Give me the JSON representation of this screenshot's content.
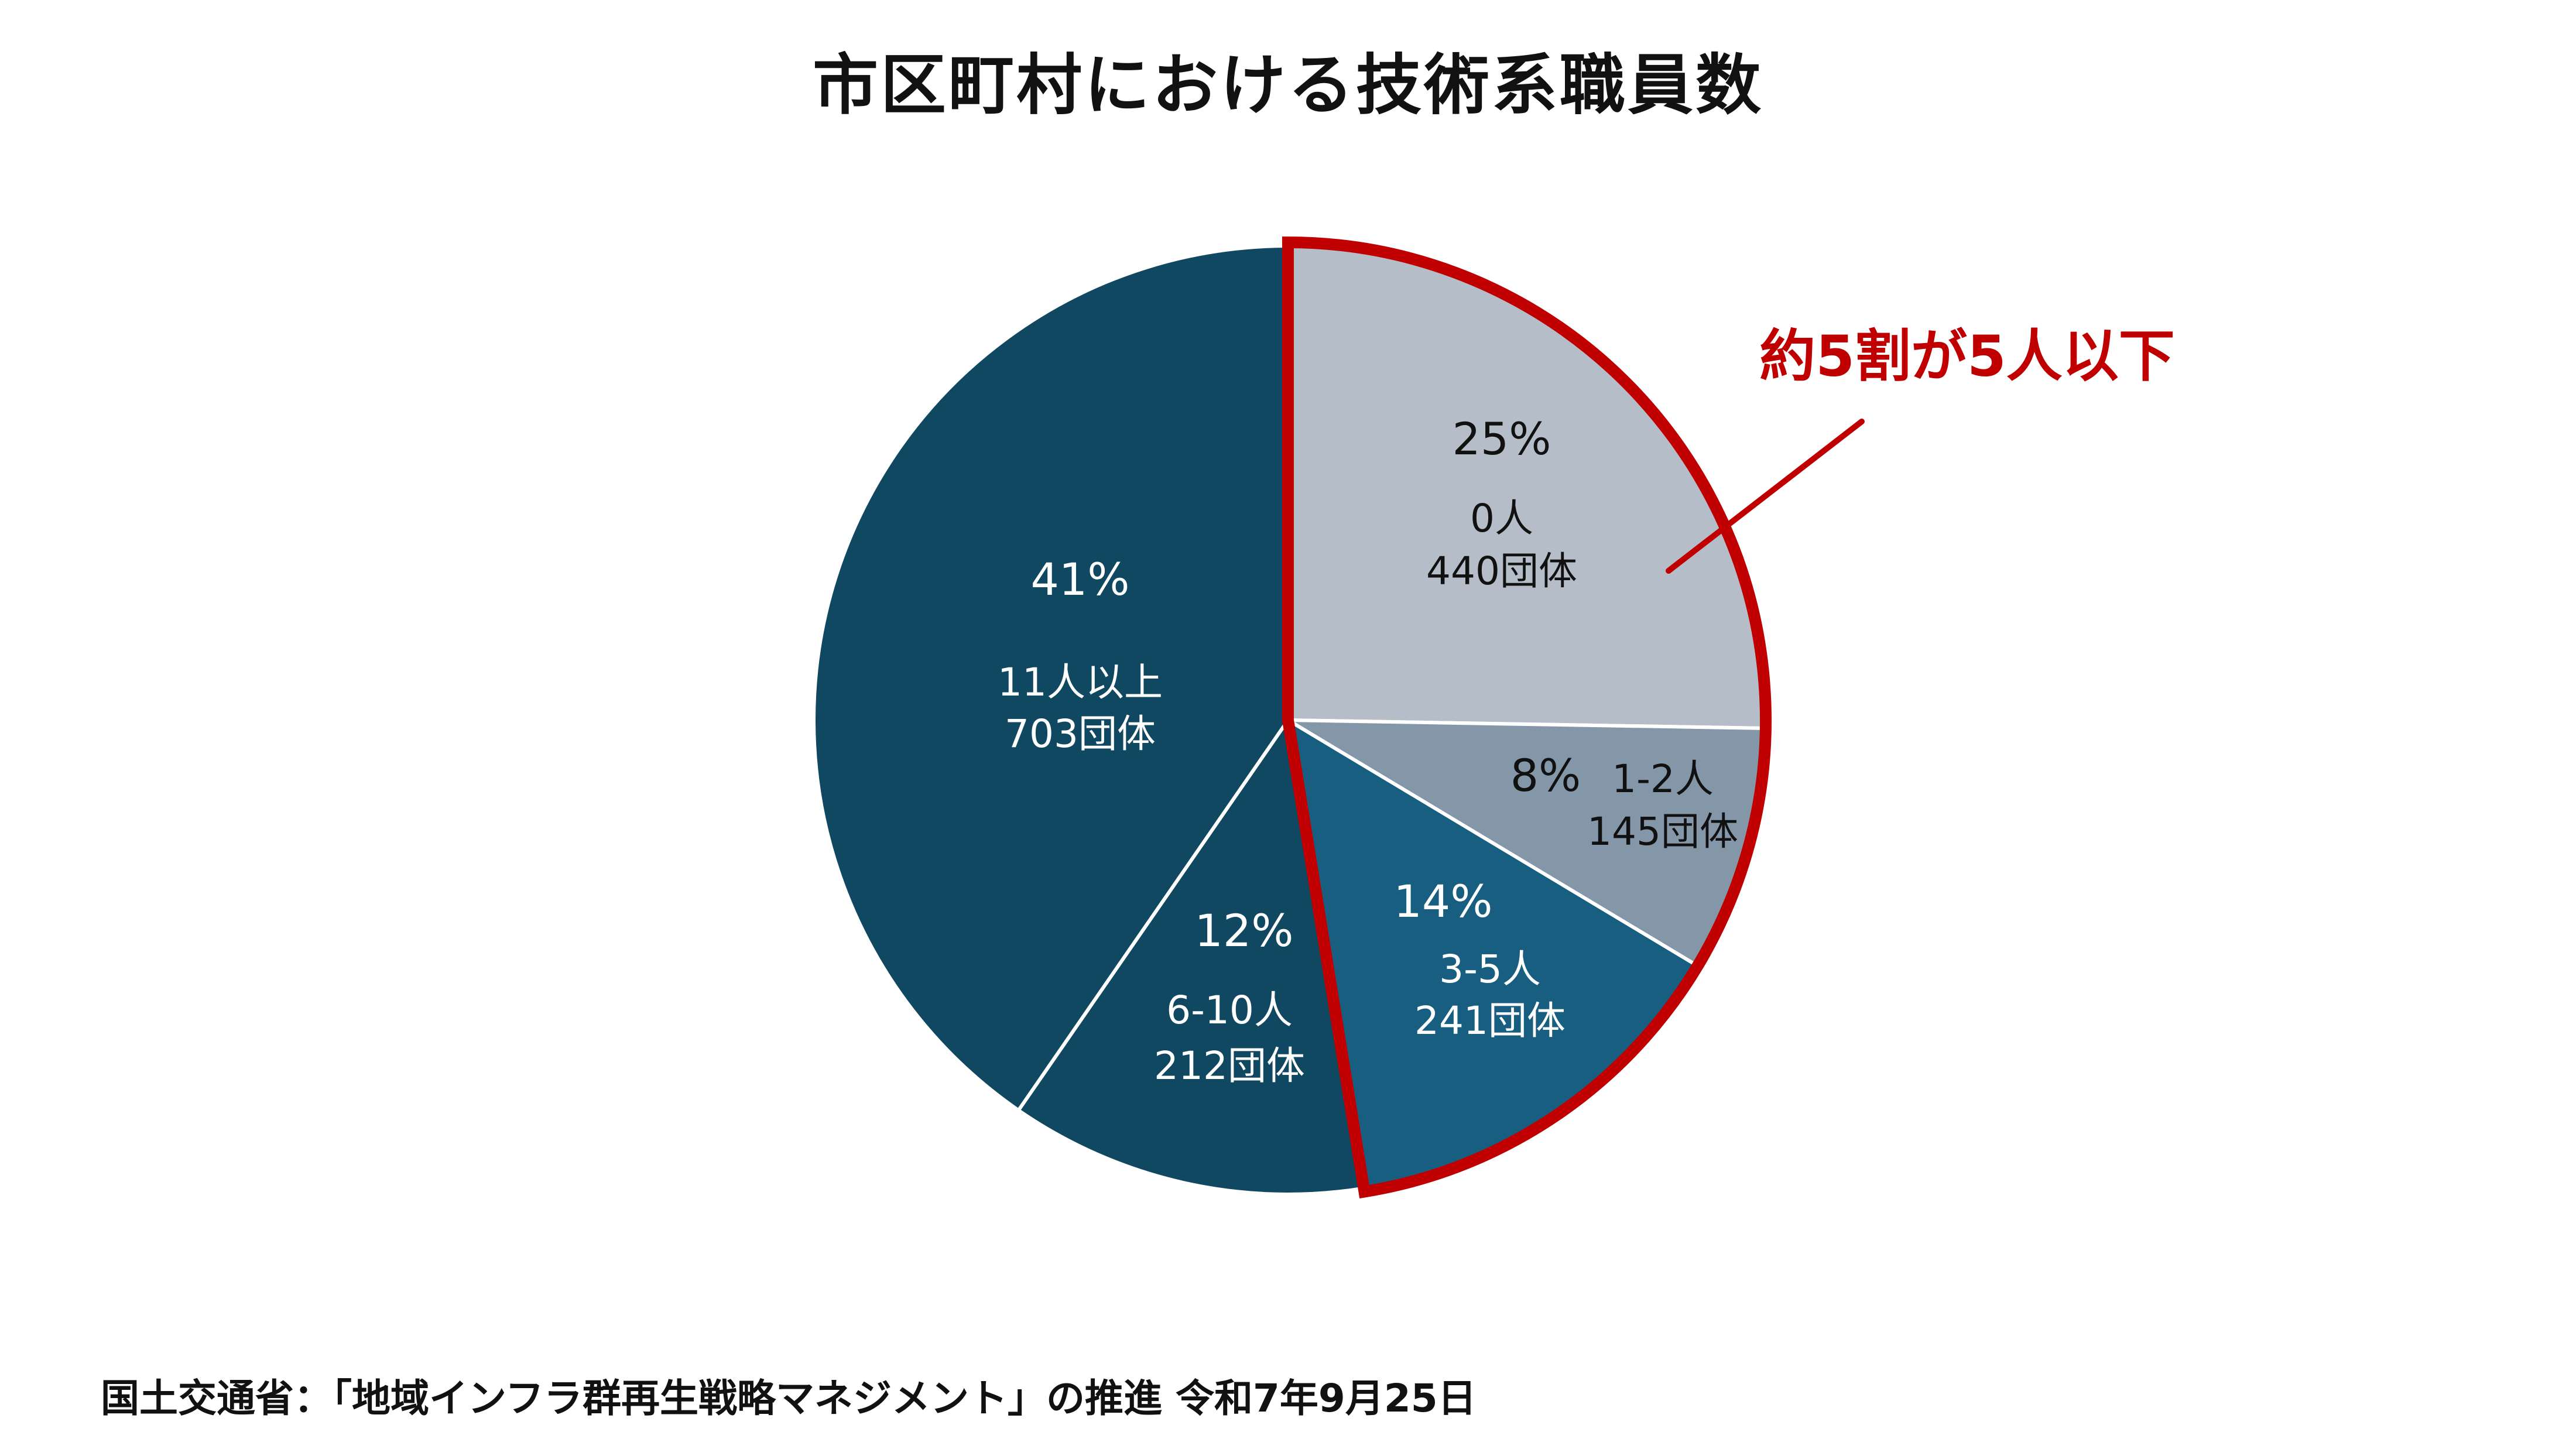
{
  "chart_data": {
    "type": "pie",
    "title": "市区町村における技術系職員数",
    "unit": "団体",
    "slices": [
      {
        "key": "s0",
        "category": "0人",
        "value": 440,
        "percent_label": "25%",
        "count_label": "440団体",
        "color": "#b5bec8",
        "text_color": "#111111"
      },
      {
        "key": "s12",
        "category": "1-2人",
        "value": 145,
        "percent_label": "8%",
        "count_label": "145団体",
        "color": "#8497a8",
        "text_color": "#111111"
      },
      {
        "key": "s35",
        "category": "3-5人",
        "value": 241,
        "percent_label": "14%",
        "count_label": "241団体",
        "color": "#185e81",
        "text_color": "#ffffff"
      },
      {
        "key": "s610",
        "category": "6-10人",
        "value": 212,
        "percent_label": "12%",
        "count_label": "212団体",
        "color": "#104862",
        "text_color": "#ffffff"
      },
      {
        "key": "s11",
        "category": "11人以上",
        "value": 703,
        "percent_label": "41%",
        "count_label": "703団体",
        "color": "#104862",
        "text_color": "#ffffff"
      }
    ],
    "start": "12 o'clock",
    "direction": "clockwise",
    "highlight": {
      "slices": [
        "0人",
        "1-2人",
        "3-5人"
      ],
      "label": "約5割が5人以下",
      "color": "#c00000"
    }
  },
  "source": "国土交通省：「地域インフラ群再生戦略マネジメント」の推進 令和7年9月25日"
}
